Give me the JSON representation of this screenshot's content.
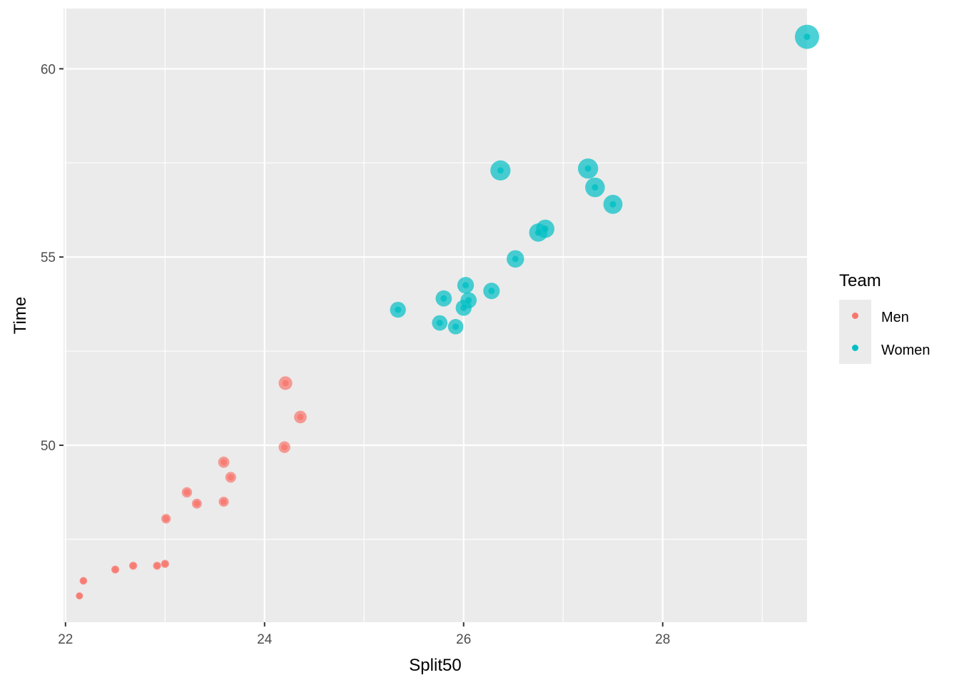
{
  "chart_data": {
    "type": "scatter",
    "title": "",
    "xlabel": "Split50",
    "ylabel": "Time",
    "xlim": [
      21.98,
      29.45
    ],
    "ylim": [
      45.3,
      61.6
    ],
    "x_ticks": [
      22,
      24,
      26,
      28
    ],
    "y_ticks": [
      50,
      55,
      60
    ],
    "grid": true,
    "panel_background": "#EBEBEB",
    "legend": {
      "title": "Team",
      "position": "right",
      "entries": [
        {
          "label": "Men",
          "color": "#F8766D"
        },
        {
          "label": "Women",
          "color": "#00BFC4"
        }
      ]
    },
    "series": [
      {
        "name": "Men",
        "color": "#F8766D",
        "points": [
          [
            22.14,
            46.0
          ],
          [
            22.18,
            46.4
          ],
          [
            22.5,
            46.7
          ],
          [
            22.68,
            46.8
          ],
          [
            22.92,
            46.8
          ],
          [
            23.0,
            46.85
          ],
          [
            23.01,
            48.05
          ],
          [
            23.22,
            48.75
          ],
          [
            23.32,
            48.45
          ],
          [
            23.59,
            48.5
          ],
          [
            23.59,
            49.55
          ],
          [
            23.66,
            49.15
          ],
          [
            24.2,
            49.95
          ],
          [
            24.21,
            51.65
          ],
          [
            24.36,
            50.75
          ]
        ]
      },
      {
        "name": "Women",
        "color": "#00BFC4",
        "points": [
          [
            25.34,
            53.6
          ],
          [
            25.76,
            53.25
          ],
          [
            25.8,
            53.9
          ],
          [
            25.92,
            53.15
          ],
          [
            26.0,
            53.65
          ],
          [
            26.02,
            54.25
          ],
          [
            26.05,
            53.85
          ],
          [
            26.28,
            54.1
          ],
          [
            26.37,
            57.3
          ],
          [
            26.52,
            54.95
          ],
          [
            26.75,
            55.65
          ],
          [
            26.82,
            55.75
          ],
          [
            27.25,
            57.35
          ],
          [
            27.32,
            56.85
          ],
          [
            27.5,
            56.4
          ],
          [
            29.45,
            60.85
          ]
        ]
      }
    ]
  }
}
